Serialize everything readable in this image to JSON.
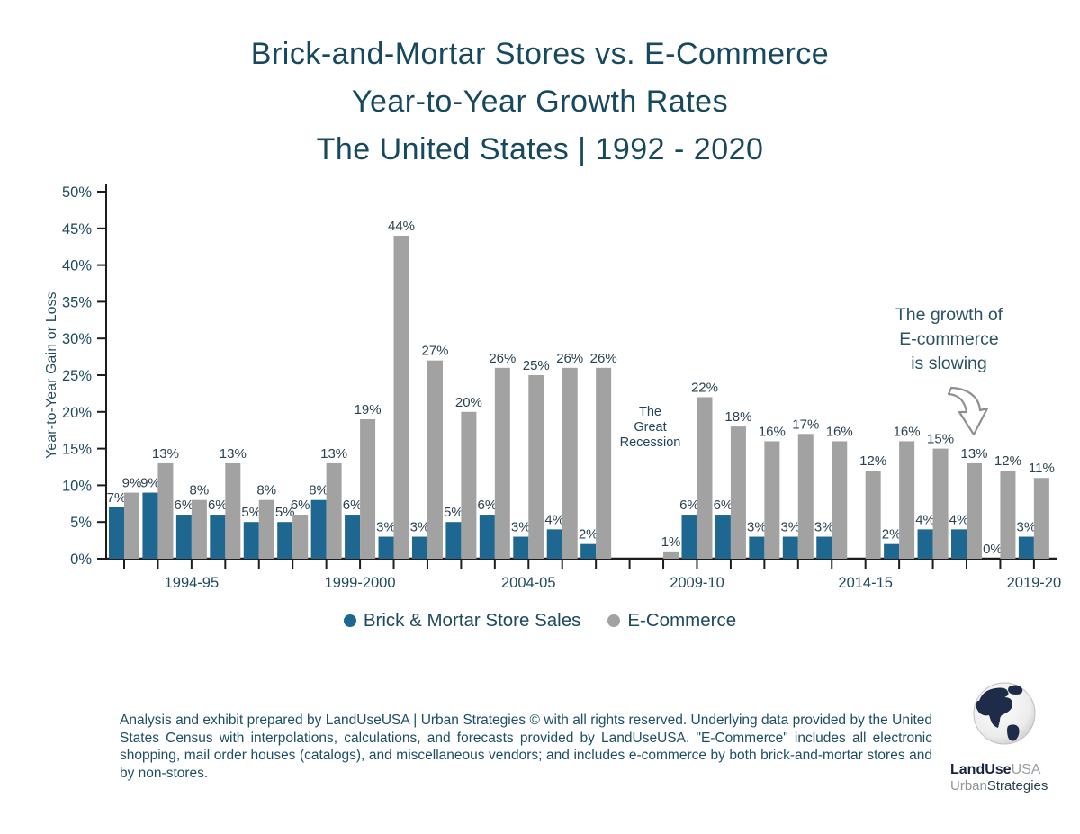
{
  "header": {
    "line1": "Brick-and-Mortar Stores vs. E-Commerce",
    "line2": "Year-to-Year Growth Rates",
    "line3": "The United States | 1992 - 2020"
  },
  "chart_data": {
    "type": "bar",
    "title": "Brick-and-Mortar Stores vs. E-Commerce Year-to-Year Growth Rates, The United States | 1992 - 2020",
    "ylabel": "Year-to-Year Gain or Loss",
    "ylim": [
      0,
      50
    ],
    "ytick_step": 5,
    "ytick_suffix": "%",
    "grid": false,
    "legend_position": "bottom",
    "value_label_suffix": "%",
    "series": [
      {
        "name": "Brick & Mortar Store Sales",
        "color": "#1e6791",
        "values": [
          7,
          9,
          6,
          6,
          5,
          5,
          8,
          6,
          3,
          3,
          5,
          6,
          3,
          4,
          2,
          null,
          null,
          6,
          6,
          3,
          3,
          3,
          null,
          2,
          4,
          4,
          0,
          3
        ]
      },
      {
        "name": "E-Commerce",
        "color": "#a2a2a2",
        "values": [
          9,
          13,
          8,
          13,
          8,
          6,
          13,
          19,
          44,
          27,
          20,
          26,
          25,
          26,
          26,
          null,
          1,
          22,
          18,
          16,
          17,
          16,
          12,
          16,
          15,
          13,
          12,
          11
        ]
      }
    ],
    "x_axis_labels": [
      {
        "period_index": 2,
        "label": "1994-95"
      },
      {
        "period_index": 7,
        "label": "1999-2000"
      },
      {
        "period_index": 12,
        "label": "2004-05"
      },
      {
        "period_index": 17,
        "label": "2009-10"
      },
      {
        "period_index": 22,
        "label": "2014-15"
      },
      {
        "period_index": 27,
        "label": "2019-20"
      }
    ],
    "annotations": {
      "recession": {
        "lines": [
          "The",
          "Great",
          "Recession"
        ]
      },
      "slowing": {
        "line1": "The growth of",
        "line2": "E-commerce",
        "line3_prefix": "is ",
        "line3_underline": "slowing"
      }
    }
  },
  "legend": {
    "items": [
      {
        "label": "Brick & Mortar Store Sales",
        "color": "#1e6791"
      },
      {
        "label": "E-Commerce",
        "color": "#a2a2a2"
      }
    ]
  },
  "footer": {
    "text": "Analysis and exhibit prepared by LandUseUSA | Urban Strategies © with all rights reserved. Underlying data provided by the United States Census with interpolations, calculations, and forecasts provided by LandUseUSA. \"E-Commerce\" includes all electronic shopping, mail order houses (catalogs), and miscellaneous vendors; and includes e-commerce by both brick-and-mortar stores and by non-stores."
  },
  "logo": {
    "line1_bold": "LandUse",
    "line1_gray": "USA",
    "line2_gray": "Urban",
    "line2_dark": "Strategies"
  },
  "colors": {
    "title_text": "#17495e",
    "axis_text": "#1d4a5f",
    "bar_label_text": "#2b4252",
    "axis_line": "#1d1d1d",
    "arrow": "#8f8f8f"
  }
}
